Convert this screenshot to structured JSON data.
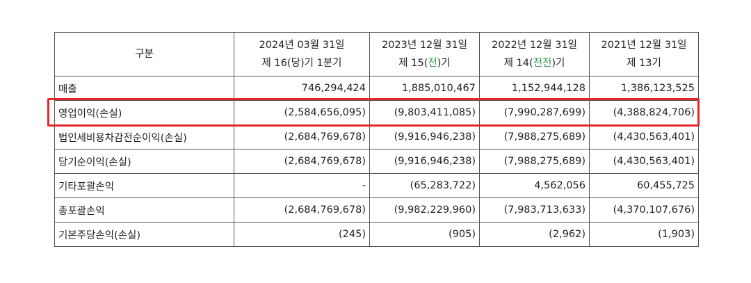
{
  "table": {
    "header": {
      "label": "구분",
      "columns": [
        {
          "date": "2024년 03월 31일",
          "period_prefix": "제 16(",
          "period_highlight": "",
          "period_plain": "당",
          "period_suffix": ")기 1분기"
        },
        {
          "date": "2023년 12월 31일",
          "period_prefix": "제 15(",
          "period_highlight": "전",
          "period_plain": "",
          "period_suffix": ")기"
        },
        {
          "date": "2022년 12월 31일",
          "period_prefix": "제 14(",
          "period_highlight": "전전",
          "period_plain": "",
          "period_suffix": ")기"
        },
        {
          "date": "2021년 12월 31일",
          "period_prefix": "제 13기",
          "period_highlight": "",
          "period_plain": "",
          "period_suffix": ""
        }
      ]
    },
    "rows": [
      {
        "label": "매출",
        "values": [
          "746,294,424",
          "1,885,010,467",
          "1,152,944,128",
          "1,386,123,525"
        ]
      },
      {
        "label": "영업이익(손실)",
        "values": [
          "(2,584,656,095)",
          "(9,803,411,085)",
          "(7,990,287,699)",
          "(4,388,824,706)"
        ]
      },
      {
        "label": "법인세비용차감전순이익(손실)",
        "values": [
          "(2,684,769,678)",
          "(9,916,946,238)",
          "(7,988,275,689)",
          "(4,430,563,401)"
        ]
      },
      {
        "label": "당기순이익(손실)",
        "values": [
          "(2,684,769,678)",
          "(9,916,946,238)",
          "(7,988,275,689)",
          "(4,430,563,401)"
        ]
      },
      {
        "label": "기타포괄손익",
        "values": [
          "-",
          "(65,283,722)",
          "4,562,056",
          "60,455,725"
        ]
      },
      {
        "label": "총포괄손익",
        "values": [
          "(2,684,769,678)",
          "(9,982,229,960)",
          "(7,983,713,633)",
          "(4,370,107,676)"
        ]
      },
      {
        "label": "기본주당손익(손실)",
        "values": [
          "(245)",
          "(905)",
          "(2,962)",
          "(1,903)"
        ]
      }
    ]
  },
  "colors": {
    "highlight_box": "#e3262a",
    "period_highlight_text": "#2e9e4f",
    "border": "#555555"
  }
}
